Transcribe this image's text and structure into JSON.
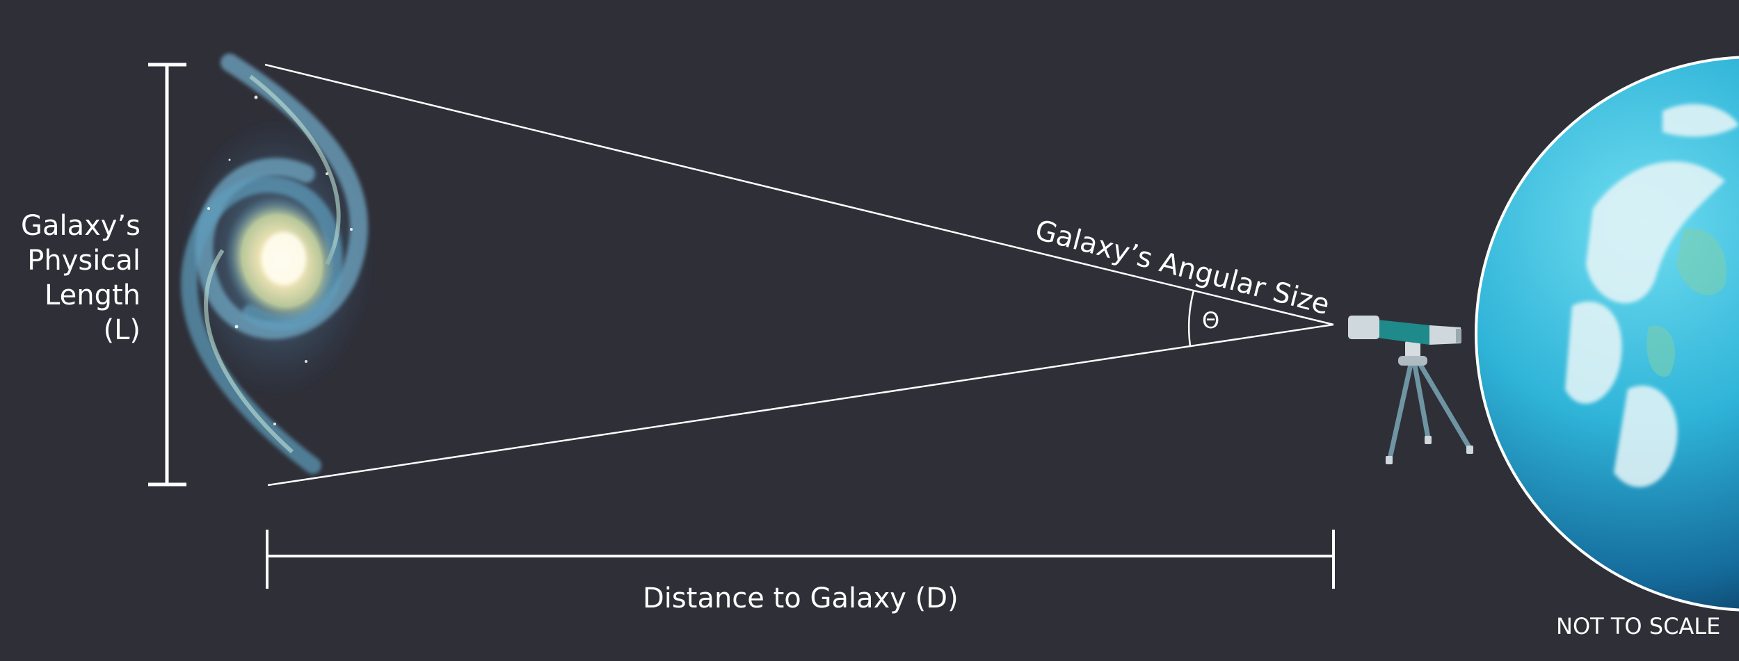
{
  "labels": {
    "length_lines": [
      "Galaxy’s",
      "Physical",
      "Length",
      "(L)"
    ],
    "angular_size": "Galaxy’s Angular Size",
    "theta": "Θ",
    "distance": "Distance to Galaxy (D)",
    "scale_note": "NOT TO SCALE"
  },
  "icons": {
    "galaxy": "spiral-galaxy-icon",
    "telescope": "telescope-icon",
    "earth": "earth-icon"
  },
  "colors": {
    "background": "#2f2f38",
    "lines": "#ffffff",
    "telescope_tube": "#1f8a8a",
    "earth_ocean": "#2fb4d8"
  }
}
